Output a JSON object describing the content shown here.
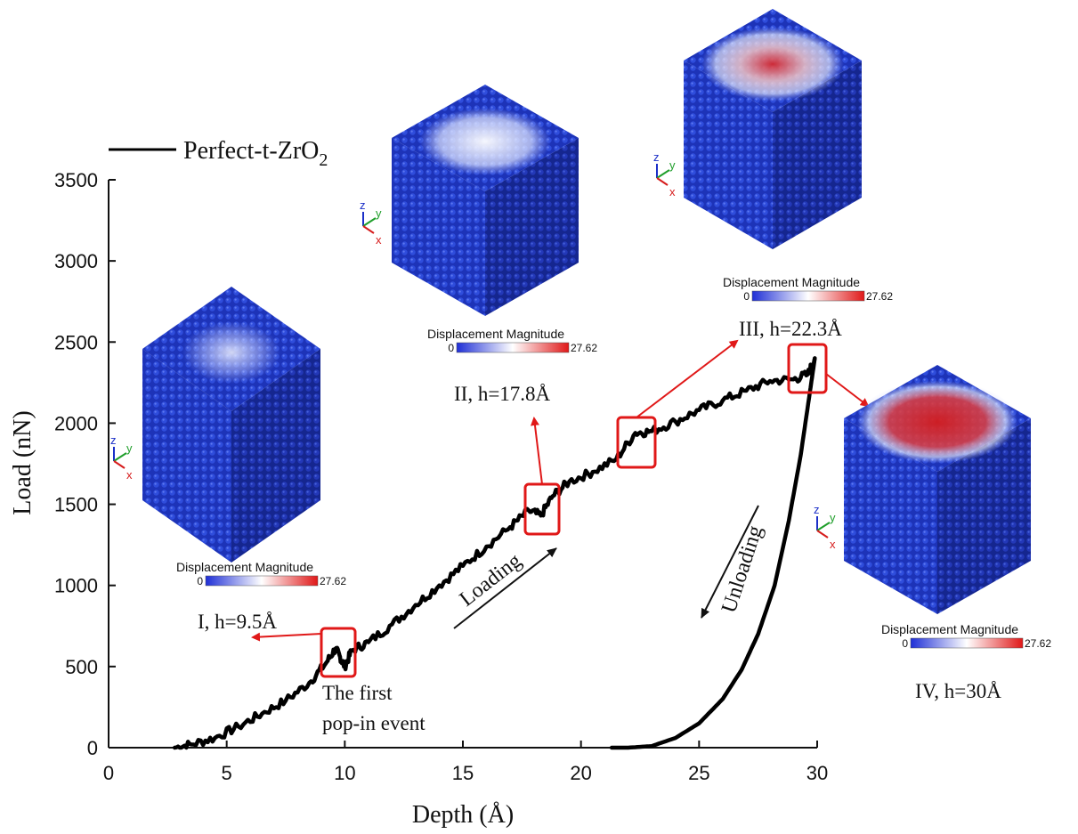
{
  "chart_data": {
    "type": "line",
    "xlabel": "Depth (Å)",
    "ylabel": "Load (nN)",
    "xlim": [
      0,
      30
    ],
    "ylim": [
      0,
      3500
    ],
    "xticks": [
      0,
      5,
      10,
      15,
      20,
      25,
      30
    ],
    "yticks": [
      0,
      500,
      1000,
      1500,
      2000,
      2500,
      3000,
      3500
    ],
    "legend": {
      "position": "top-left",
      "entries": [
        "Perfect-t-ZrO2"
      ]
    },
    "series": [
      {
        "name": "Perfect-t-ZrO2",
        "color": "#000000",
        "loading": [
          [
            2.8,
            0
          ],
          [
            3.5,
            20
          ],
          [
            4.5,
            60
          ],
          [
            5.5,
            130
          ],
          [
            6.5,
            210
          ],
          [
            7.5,
            290
          ],
          [
            8.5,
            400
          ],
          [
            9.2,
            520
          ],
          [
            9.6,
            610
          ],
          [
            9.8,
            560
          ],
          [
            10.0,
            500
          ],
          [
            10.3,
            600
          ],
          [
            11,
            650
          ],
          [
            12,
            760
          ],
          [
            13,
            880
          ],
          [
            14,
            1000
          ],
          [
            15,
            1120
          ],
          [
            16,
            1240
          ],
          [
            17,
            1360
          ],
          [
            17.8,
            1460
          ],
          [
            18.3,
            1430
          ],
          [
            18.8,
            1550
          ],
          [
            19.5,
            1640
          ],
          [
            20.5,
            1700
          ],
          [
            21.5,
            1780
          ],
          [
            22.3,
            1940
          ],
          [
            23,
            1950
          ],
          [
            24,
            2010
          ],
          [
            25,
            2080
          ],
          [
            26,
            2140
          ],
          [
            27,
            2200
          ],
          [
            28,
            2260
          ],
          [
            29,
            2270
          ],
          [
            29.6,
            2300
          ],
          [
            29.9,
            2400
          ]
        ],
        "unloading": [
          [
            29.9,
            2400
          ],
          [
            29.7,
            2200
          ],
          [
            29.3,
            1800
          ],
          [
            28.8,
            1400
          ],
          [
            28.2,
            1000
          ],
          [
            27.5,
            700
          ],
          [
            26.8,
            480
          ],
          [
            26,
            300
          ],
          [
            25,
            150
          ],
          [
            24,
            60
          ],
          [
            23,
            10
          ],
          [
            22,
            0
          ],
          [
            21.3,
            0
          ]
        ]
      }
    ],
    "annotations": {
      "stage_labels": [
        "I, h=9.5Å",
        "II, h=17.8Å",
        "III, h=22.3Å",
        "IV, h=30Å"
      ],
      "loading": "Loading",
      "unloading": "Unloading",
      "popin_line1": "The first",
      "popin_line2": "pop-in event"
    },
    "insets": {
      "title": "Displacement Magnitude",
      "cmin": "0",
      "cmax": "27.62",
      "axes": [
        "z",
        "y",
        "x"
      ],
      "colors": {
        "atom_blue": "#2244cc",
        "white": "#f2f4ff",
        "red": "#d62020"
      }
    }
  }
}
